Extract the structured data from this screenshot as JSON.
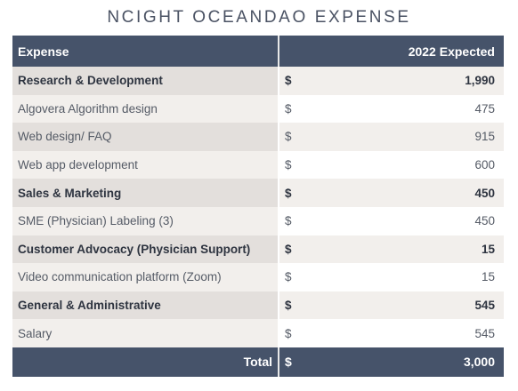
{
  "title": "NCIGHT OCEANDAO EXPENSE",
  "header": {
    "label": "Expense",
    "value": "2022 Expected"
  },
  "rows": [
    {
      "label": "Research & Development",
      "dollar": "$",
      "value": "1,990",
      "bold": true
    },
    {
      "label": "Algovera Algorithm design",
      "dollar": "$",
      "value": "475",
      "bold": false
    },
    {
      "label": "Web design/ FAQ",
      "dollar": "$",
      "value": "915",
      "bold": false
    },
    {
      "label": "Web app development",
      "dollar": "$",
      "value": "600",
      "bold": false
    },
    {
      "label": "Sales & Marketing",
      "dollar": "$",
      "value": "450",
      "bold": true
    },
    {
      "label": "SME (Physician) Labeling (3)",
      "dollar": "$",
      "value": "450",
      "bold": false
    },
    {
      "label": "Customer Advocacy (Physician Support)",
      "dollar": "$",
      "value": "15",
      "bold": true
    },
    {
      "label": "Video communication platform (Zoom)",
      "dollar": "$",
      "value": "15",
      "bold": false
    },
    {
      "label": "General & Administrative",
      "dollar": "$",
      "value": "545",
      "bold": true
    },
    {
      "label": "Salary",
      "dollar": "$",
      "value": "545",
      "bold": false
    }
  ],
  "total": {
    "label": "Total",
    "dollar": "$",
    "value": "3,000"
  },
  "colors": {
    "header_bg": "#46536a",
    "label_odd": "#e3dfdc",
    "row_alt": "#f2efec"
  }
}
